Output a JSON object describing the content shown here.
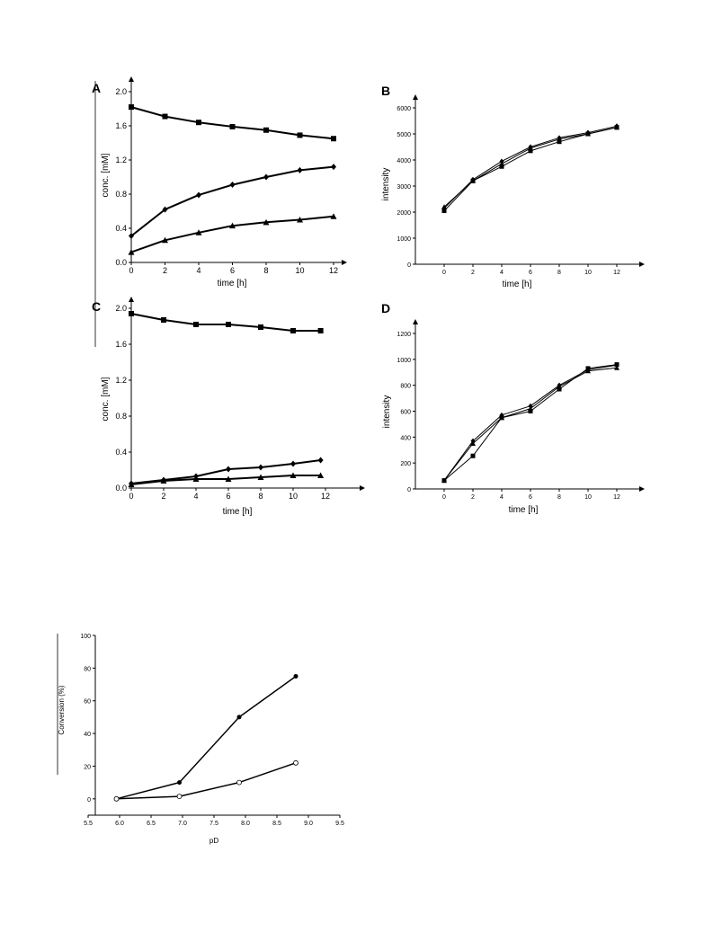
{
  "chart_data": [
    {
      "panel": "A",
      "type": "line",
      "xlabel": "time [h]",
      "ylabel": "conc. [mM]",
      "xlim": [
        0,
        12
      ],
      "ylim": [
        0,
        2.0
      ],
      "xticks": [
        "0",
        "2",
        "4",
        "6",
        "8",
        "10",
        "12"
      ],
      "yticks": [
        "0.0",
        "0.4",
        "0.8",
        "1.2",
        "1.6",
        "2.0"
      ],
      "grid": false,
      "series": [
        {
          "marker": "square",
          "x": [
            0,
            2,
            4,
            6,
            8,
            10,
            12
          ],
          "y": [
            1.82,
            1.71,
            1.64,
            1.59,
            1.55,
            1.49,
            1.45
          ]
        },
        {
          "marker": "diamond",
          "x": [
            0,
            2,
            4,
            6,
            8,
            10,
            12
          ],
          "y": [
            0.31,
            0.62,
            0.79,
            0.91,
            1.0,
            1.08,
            1.12
          ]
        },
        {
          "marker": "triangle",
          "x": [
            0,
            2,
            4,
            6,
            8,
            10,
            12
          ],
          "y": [
            0.12,
            0.26,
            0.35,
            0.43,
            0.47,
            0.5,
            0.54
          ]
        }
      ]
    },
    {
      "panel": "B",
      "type": "line",
      "xlabel": "time [h]",
      "ylabel": "intensity",
      "xlim": [
        -2,
        13
      ],
      "ylim": [
        0,
        6000
      ],
      "xticks": [
        "0",
        "2",
        "4",
        "6",
        "8",
        "10",
        "12"
      ],
      "yticks": [
        "0",
        "1000",
        "2000",
        "3000",
        "4000",
        "5000",
        "6000"
      ],
      "grid": false,
      "series": [
        {
          "marker": "square",
          "x": [
            0,
            2,
            4,
            6,
            8,
            10,
            12
          ],
          "y": [
            2050,
            3200,
            3750,
            4350,
            4700,
            5000,
            5250
          ]
        },
        {
          "marker": "diamond",
          "x": [
            0,
            2,
            4,
            6,
            8,
            10,
            12
          ],
          "y": [
            2150,
            3250,
            3950,
            4500,
            4850,
            5050,
            5300
          ]
        },
        {
          "marker": "triangle",
          "x": [
            0,
            2,
            4,
            6,
            8,
            10,
            12
          ],
          "y": [
            2200,
            3200,
            3850,
            4450,
            4800,
            5000,
            5250
          ]
        }
      ]
    },
    {
      "panel": "C",
      "type": "line",
      "xlabel": "time [h]",
      "ylabel": "conc. [mM]",
      "xlim": [
        0,
        12.5
      ],
      "ylim": [
        0,
        2.0
      ],
      "xticks": [
        "0",
        "2",
        "4",
        "6",
        "8",
        "10",
        "12"
      ],
      "yticks": [
        "0.0",
        "0.4",
        "0.8",
        "1.2",
        "1.6",
        "2.0"
      ],
      "grid": false,
      "series": [
        {
          "marker": "square",
          "x": [
            0,
            2,
            4,
            6,
            8,
            10,
            11.7
          ],
          "y": [
            1.94,
            1.87,
            1.82,
            1.82,
            1.79,
            1.75,
            1.75
          ]
        },
        {
          "marker": "diamond",
          "x": [
            0,
            2,
            4,
            6,
            8,
            10,
            11.7
          ],
          "y": [
            0.05,
            0.09,
            0.13,
            0.21,
            0.23,
            0.27,
            0.31
          ]
        },
        {
          "marker": "triangle",
          "x": [
            0,
            2,
            4,
            6,
            8,
            10,
            11.7
          ],
          "y": [
            0.04,
            0.08,
            0.1,
            0.1,
            0.12,
            0.14,
            0.14
          ]
        }
      ]
    },
    {
      "panel": "D",
      "type": "line",
      "xlabel": "time [h]",
      "ylabel": "intensity",
      "xlim": [
        -2,
        13
      ],
      "ylim": [
        0,
        1200
      ],
      "xticks": [
        "0",
        "2",
        "4",
        "6",
        "8",
        "10",
        "12"
      ],
      "yticks": [
        "0",
        "200",
        "400",
        "600",
        "800",
        "1000",
        "1200"
      ],
      "grid": false,
      "series": [
        {
          "marker": "square",
          "x": [
            0,
            2,
            4,
            6,
            8,
            10,
            12
          ],
          "y": [
            65,
            255,
            550,
            600,
            770,
            930,
            960
          ]
        },
        {
          "marker": "diamond",
          "x": [
            0,
            2,
            4,
            6,
            8,
            10,
            12
          ],
          "y": [
            65,
            370,
            570,
            640,
            800,
            920,
            955
          ]
        },
        {
          "marker": "triangle",
          "x": [
            0,
            2,
            4,
            6,
            8,
            10,
            12
          ],
          "y": [
            65,
            350,
            550,
            620,
            790,
            910,
            935
          ]
        }
      ]
    },
    {
      "panel": "",
      "type": "line",
      "xlabel": "pD",
      "ylabel": "Conversion (%)",
      "xlim": [
        5.5,
        9.5
      ],
      "ylim": [
        -10,
        100
      ],
      "xticks": [
        "5.5",
        "6.0",
        "6.5",
        "7.0",
        "7.5",
        "8.0",
        "8.5",
        "9.0",
        "9.5"
      ],
      "yticks": [
        "0",
        "20",
        "40",
        "60",
        "80",
        "100"
      ],
      "grid": false,
      "series": [
        {
          "marker": "circle-filled",
          "x": [
            5.95,
            6.95,
            7.9,
            8.8
          ],
          "y": [
            0,
            10,
            50,
            75
          ]
        },
        {
          "marker": "circle-open",
          "x": [
            5.95,
            6.95,
            7.9,
            8.8
          ],
          "y": [
            0,
            1.5,
            10,
            22
          ]
        }
      ]
    }
  ]
}
